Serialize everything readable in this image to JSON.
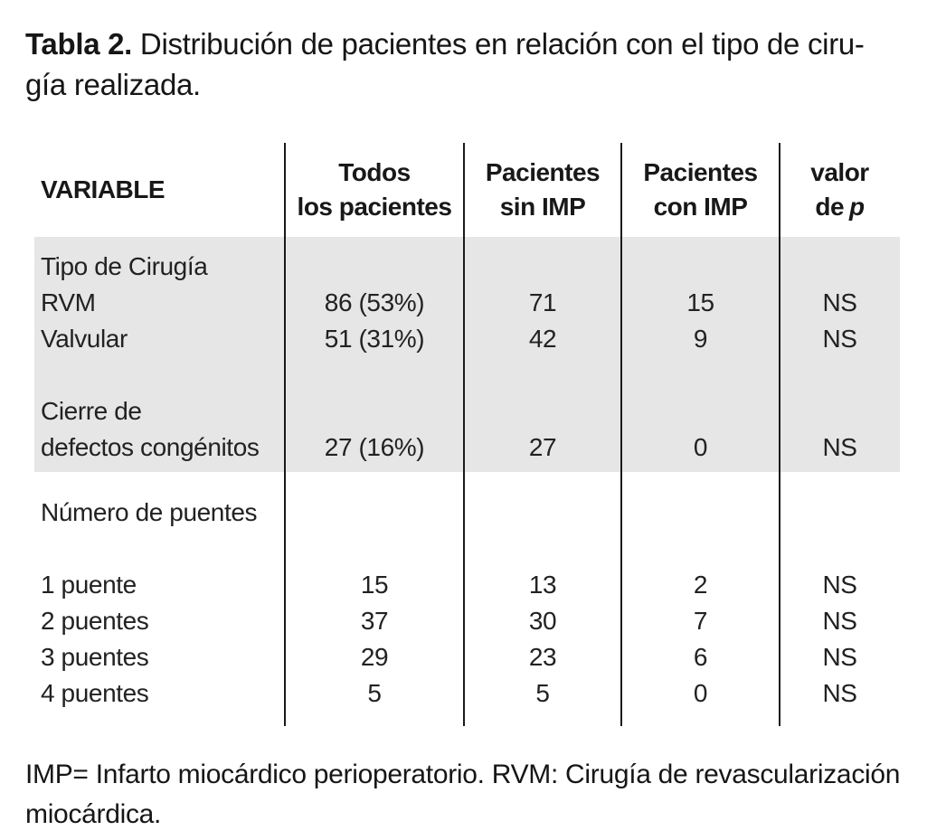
{
  "colors": {
    "band": "#e5e6e5",
    "line": "#1a1a1a",
    "text": "#1d1d1d"
  },
  "title": {
    "bold": "Tabla 2.",
    "line1_rest": "Distribución de pacientes en relación con el tipo de ciru-",
    "line2": "gía realizada."
  },
  "table": {
    "headers": {
      "variable": "VARIABLE",
      "col2": {
        "line1": "Todos",
        "line2": "los pacientes"
      },
      "col3": {
        "line1": "Pacientes",
        "line2": "sin IMP"
      },
      "col4": {
        "line1": "Pacientes",
        "line2": "con IMP"
      },
      "col5": {
        "line1": "valor",
        "line2_prefix": "de",
        "line2_italic": "p"
      }
    },
    "sections": {
      "gray": {
        "rows": [
          {
            "label": "Tipo de Cirugía",
            "all": "",
            "sin": "",
            "con": "",
            "p": ""
          },
          {
            "label": "RVM",
            "all": "86 (53%)",
            "sin": "71",
            "con": "15",
            "p": "NS"
          },
          {
            "label": "Valvular",
            "all": "51 (31%)",
            "sin": "42",
            "con": "9",
            "p": "NS"
          },
          {
            "label": "",
            "all": "",
            "sin": "",
            "con": "",
            "p": ""
          },
          {
            "label": "Cierre de",
            "all": "",
            "sin": "",
            "con": "",
            "p": ""
          },
          {
            "label": "defectos congénitos",
            "all": "27 (16%)",
            "sin": "27",
            "con": "0",
            "p": "NS"
          }
        ]
      },
      "white": {
        "rows": [
          {
            "label": "Número de puentes",
            "all": "",
            "sin": "",
            "con": "",
            "p": ""
          },
          {
            "label": "",
            "all": "",
            "sin": "",
            "con": "",
            "p": ""
          },
          {
            "label": "1 puente",
            "all": "15",
            "sin": "13",
            "con": "2",
            "p": "NS"
          },
          {
            "label": "2 puentes",
            "all": "37",
            "sin": "30",
            "con": "7",
            "p": "NS"
          },
          {
            "label": "3 puentes",
            "all": "29",
            "sin": "23",
            "con": "6",
            "p": "NS"
          },
          {
            "label": "4 puentes",
            "all": "5",
            "sin": "5",
            "con": "0",
            "p": "NS"
          }
        ]
      }
    }
  },
  "footnote": {
    "line1": "IMP= Infarto miocárdico perioperatorio. RVM: Cirugía de revascularización",
    "line2": "miocárdica."
  }
}
